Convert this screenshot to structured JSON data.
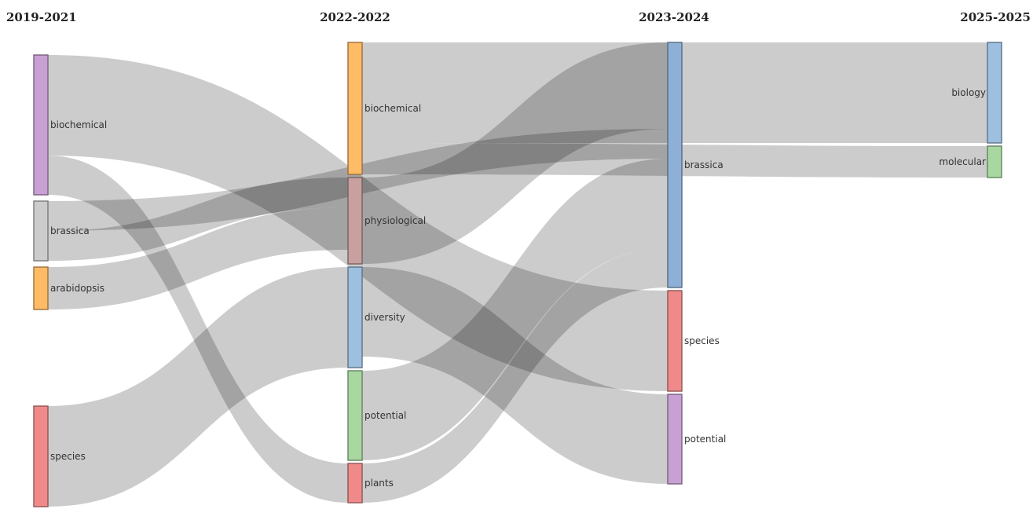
{
  "periods": [
    "2019-2021",
    "2022-2022",
    "2023-2024",
    "2025-2025"
  ],
  "nodes": [
    {
      "id": "b19",
      "label": "biochemical",
      "period": 0,
      "color": "#c9a0d4"
    },
    {
      "id": "br19",
      "label": "brassica",
      "period": 0,
      "color": "#cccccc"
    },
    {
      "id": "ar19",
      "label": "arabidopsis",
      "period": 0,
      "color": "#ffbb66"
    },
    {
      "id": "sp19",
      "label": "species",
      "period": 0,
      "color": "#f08a8a"
    },
    {
      "id": "b22",
      "label": "biochemical",
      "period": 1,
      "color": "#ffbb66"
    },
    {
      "id": "ph22",
      "label": "physiological",
      "period": 1,
      "color": "#c9a0a0"
    },
    {
      "id": "dv22",
      "label": "diversity",
      "period": 1,
      "color": "#9dbfe0"
    },
    {
      "id": "po22",
      "label": "potential",
      "period": 1,
      "color": "#a8d8a0"
    },
    {
      "id": "pl22",
      "label": "plants",
      "period": 1,
      "color": "#f08a8a"
    },
    {
      "id": "br23",
      "label": "brassica",
      "period": 2,
      "color": "#8fb0d6"
    },
    {
      "id": "sp23",
      "label": "species",
      "period": 2,
      "color": "#f08a8a"
    },
    {
      "id": "po23",
      "label": "potential",
      "period": 2,
      "color": "#c9a0d4"
    },
    {
      "id": "bi25",
      "label": "biology",
      "period": 3,
      "color": "#9dbfe0"
    },
    {
      "id": "mo25",
      "label": "molecular",
      "period": 3,
      "color": "#a8d8a0"
    }
  ],
  "links": [
    {
      "source": "b19",
      "target": "sp23",
      "value": 128
    },
    {
      "source": "b19",
      "target": "pl22",
      "value": 50
    },
    {
      "source": "br19",
      "target": "br23",
      "value": 38
    },
    {
      "source": "br19",
      "target": "ph22",
      "value": 38
    },
    {
      "source": "ar19",
      "target": "ph22",
      "value": 54
    },
    {
      "source": "sp19",
      "target": "dv22",
      "value": 128
    },
    {
      "source": "b22",
      "target": "bi25",
      "value": 128
    },
    {
      "source": "b22",
      "target": "mo25",
      "value": 40
    },
    {
      "source": "ph22",
      "target": "br23",
      "value": 110
    },
    {
      "source": "dv22",
      "target": "po23",
      "value": 114
    },
    {
      "source": "po22",
      "target": "br23",
      "value": 114
    },
    {
      "source": "pl22",
      "target": "br23",
      "value": 50
    }
  ]
}
